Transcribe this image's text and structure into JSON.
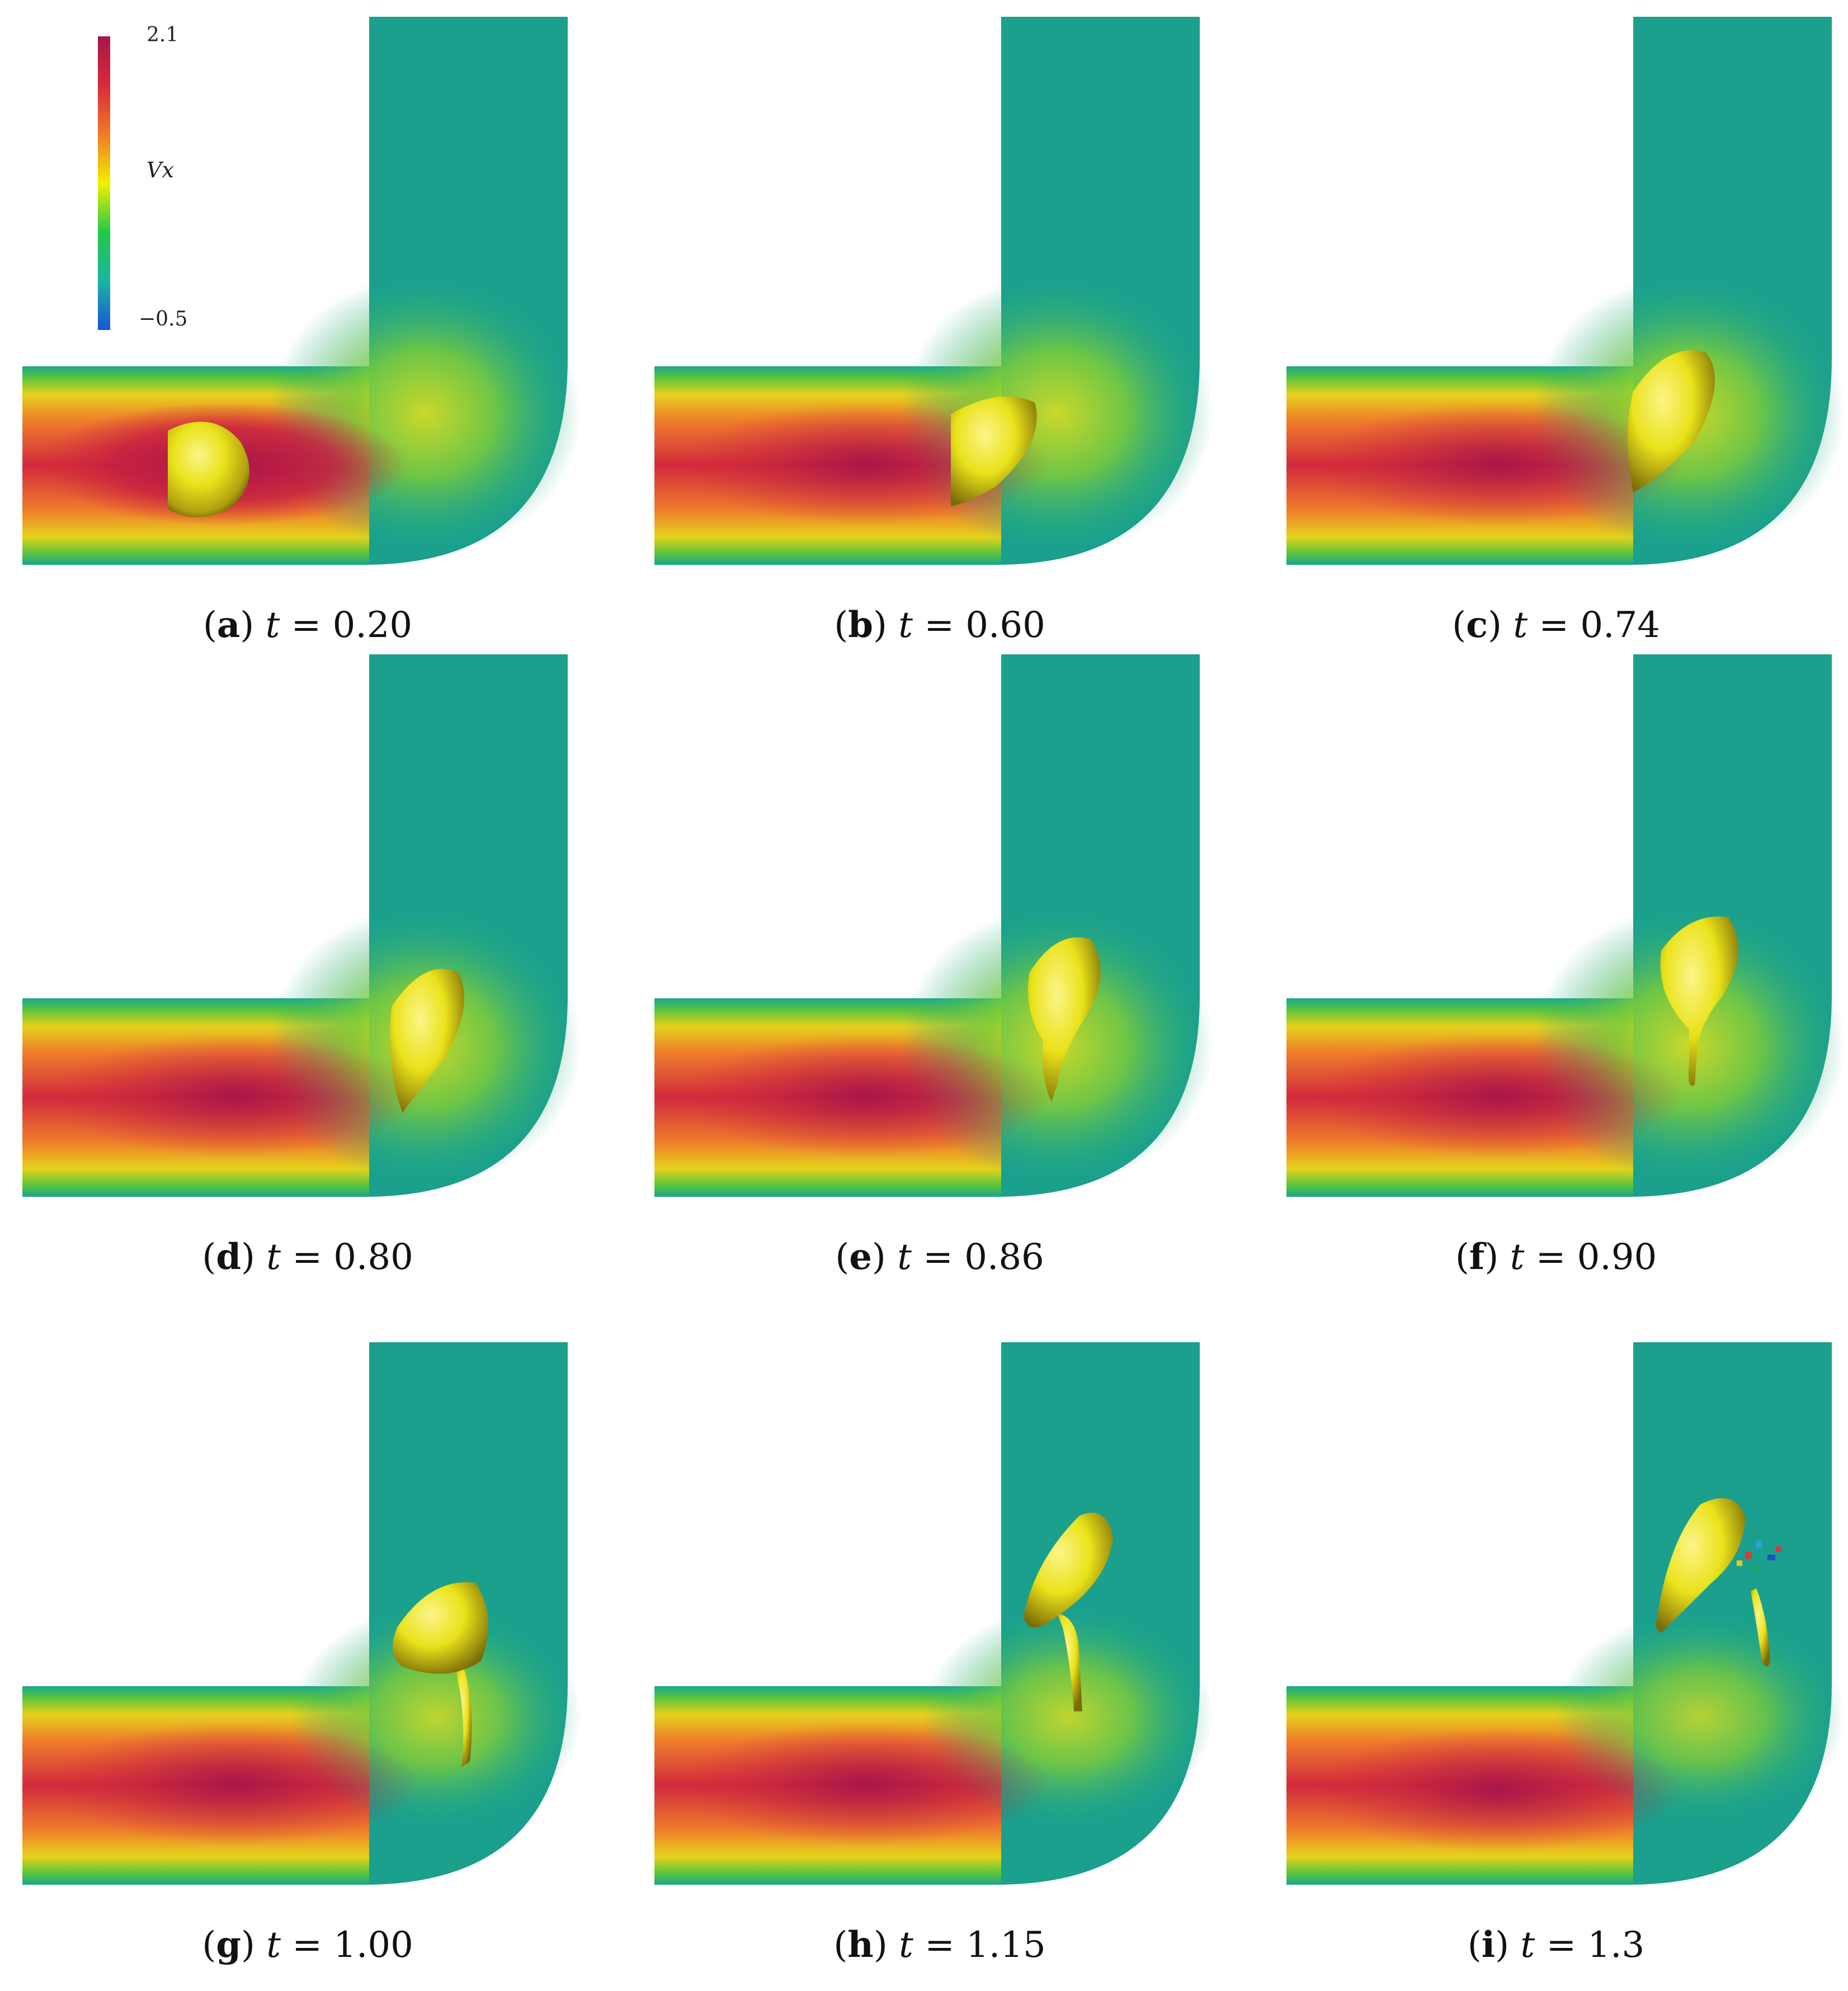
{
  "colorbar": {
    "max_label": "2.1",
    "min_label": "−0.5",
    "variable": "Vx",
    "colors": [
      "#1a55d8",
      "#1ab5a0",
      "#22c84a",
      "#f2f000",
      "#f07a28",
      "#d82a3a",
      "#a8164a"
    ]
  },
  "panels": [
    {
      "label": "a",
      "time": "0.20"
    },
    {
      "label": "b",
      "time": "0.60"
    },
    {
      "label": "c",
      "time": "0.74"
    },
    {
      "label": "d",
      "time": "0.80"
    },
    {
      "label": "e",
      "time": "0.86"
    },
    {
      "label": "f",
      "time": "0.90"
    },
    {
      "label": "g",
      "time": "1.00"
    },
    {
      "label": "h",
      "time": "1.15"
    },
    {
      "label": "i",
      "time": "1.3"
    }
  ]
}
